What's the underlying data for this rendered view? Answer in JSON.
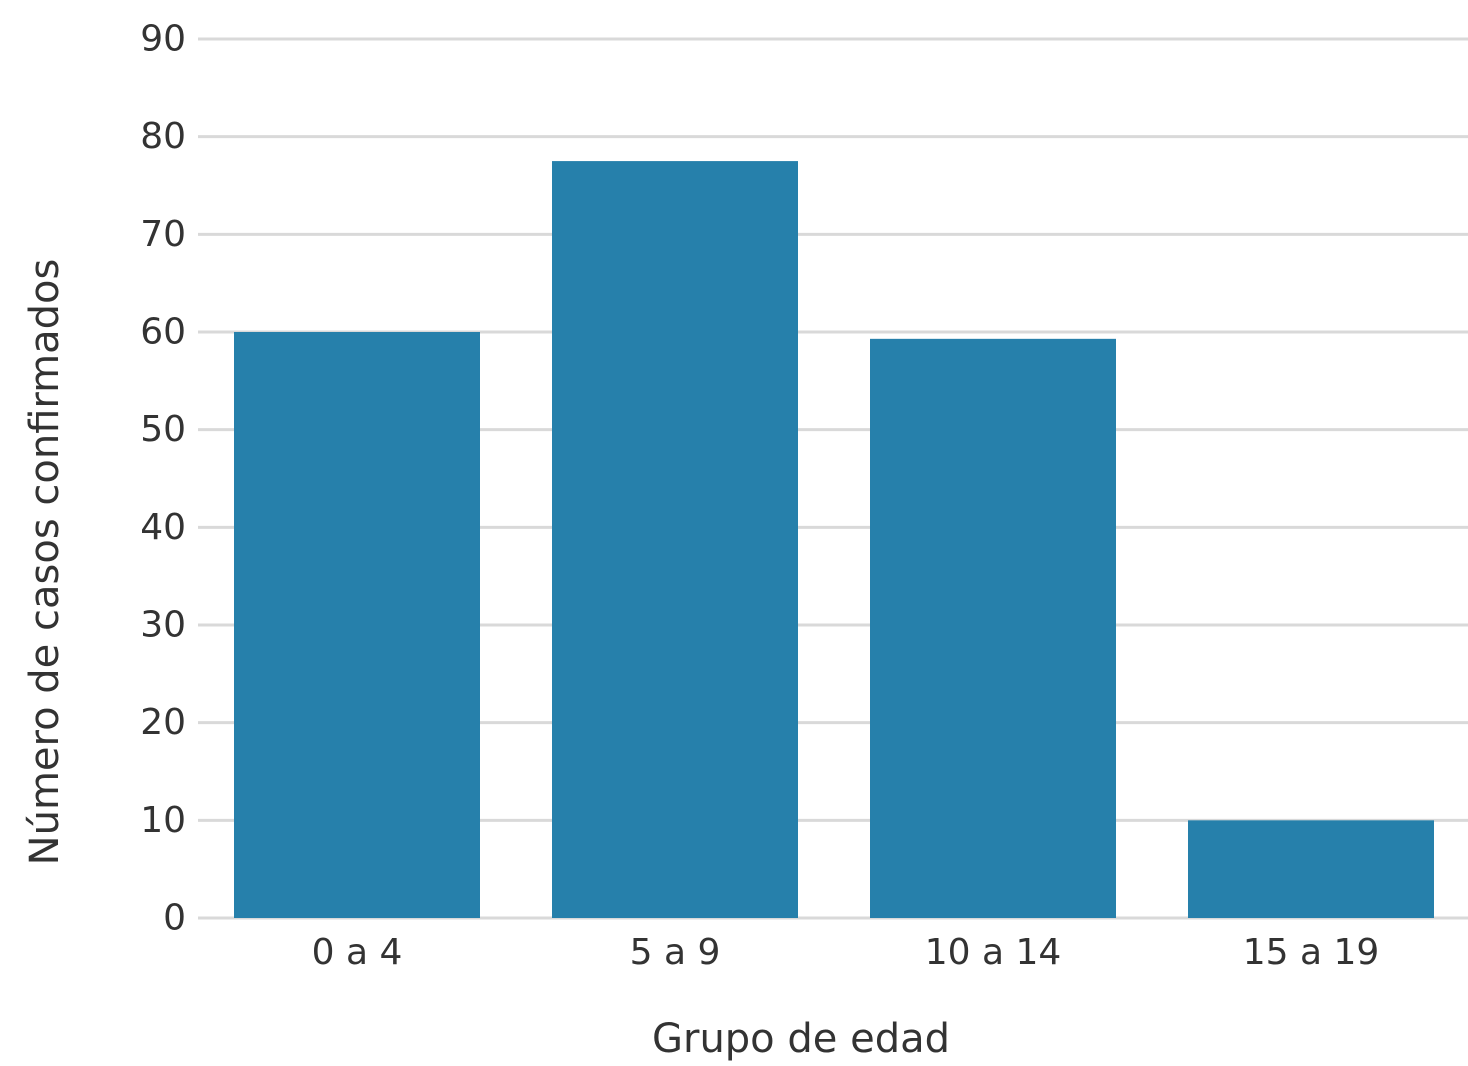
{
  "chart_data": {
    "type": "bar",
    "title": "",
    "xlabel": "Grupo de edad",
    "ylabel": "Número de casos confirmados",
    "categories": [
      "0 a 4",
      "5 a 9",
      "10 a 14",
      "15 a 19"
    ],
    "values": [
      60,
      77.5,
      59.3,
      10
    ],
    "ylim": [
      0,
      90
    ],
    "yticks": [
      0,
      10,
      20,
      30,
      40,
      50,
      60,
      70,
      80,
      90
    ],
    "grid": true,
    "legend": "none",
    "colors": {
      "bar": "#2680ab",
      "grid": "#d9d9d9",
      "text": "#333333"
    }
  }
}
